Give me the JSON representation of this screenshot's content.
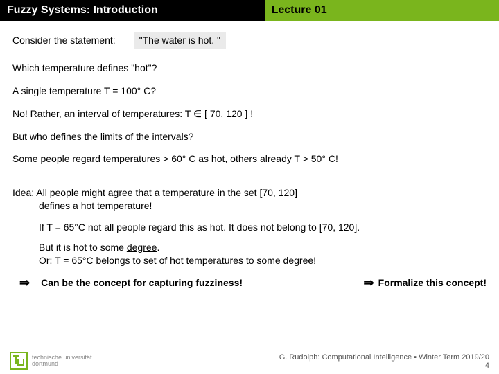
{
  "titlebar": {
    "left": "Fuzzy Systems: Introduction",
    "right": "Lecture 01"
  },
  "content": {
    "consider": "Consider the statement:",
    "quote": "\"The water is hot. \"",
    "q1": "Which temperature defines \"hot\"?",
    "q2": "A single temperature T = 100° C?",
    "ans": "No! Rather, an interval of temperatures: T ∈ [ 70, 120 ] !",
    "q3": "But who defines the limits of the intervals?",
    "ex": "Some people regard temperatures > 60° C as hot, others already T > 50° C!",
    "idea_label": "Idea",
    "idea_l1": ": All people might agree that a temperature in the ",
    "idea_set": "set",
    "idea_l1b": " [70, 120]",
    "idea_l2": "defines a hot temperature!",
    "if_line": "If T = 65°C not all people regard this as hot. It does not belong to [70, 120].",
    "but_a": "But it is hot to some ",
    "degree": "degree",
    "but_b": ".",
    "or_a": "Or: T = 65°C belongs to set of hot temperatures to some ",
    "or_b": "!",
    "arrow": "⇒",
    "closing_main": "Can be the concept for capturing fuzziness!",
    "formalize": "Formalize this concept!"
  },
  "footer": {
    "uni1": "technische universität",
    "uni2": "dortmund",
    "credit": "G. Rudolph: Computational Intelligence ▪ Winter Term 2019/20",
    "page": "4"
  },
  "colors": {
    "accent": "#7ab51d",
    "black": "#000000",
    "quote_bg": "#eaeaea"
  }
}
